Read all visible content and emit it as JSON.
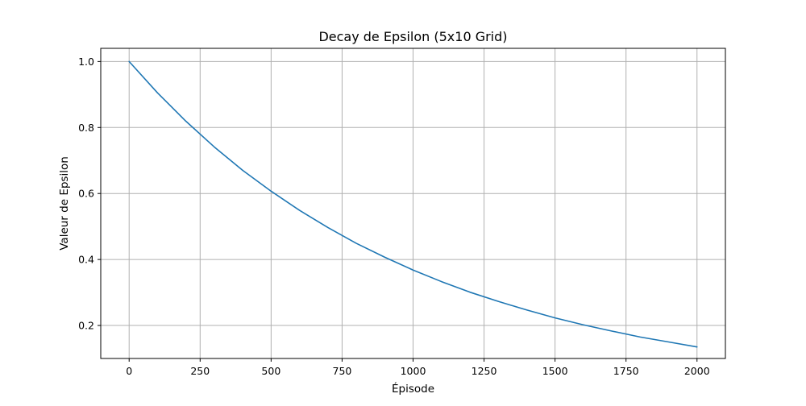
{
  "chart_data": {
    "type": "line",
    "title": "Decay de Epsilon (5x10 Grid)",
    "xlabel": "Épisode",
    "ylabel": "Valeur de Epsilon",
    "xlim": [
      -100,
      2100
    ],
    "ylim": [
      0.1,
      1.04
    ],
    "xticks": [
      0,
      250,
      500,
      750,
      1000,
      1250,
      1500,
      1750,
      2000
    ],
    "xtick_labels": [
      "0",
      "250",
      "500",
      "750",
      "1000",
      "1250",
      "1500",
      "1750",
      "2000"
    ],
    "yticks": [
      0.2,
      0.4,
      0.6,
      0.8,
      1.0
    ],
    "ytick_labels": [
      "0.2",
      "0.4",
      "0.6",
      "0.8",
      "1.0"
    ],
    "grid": true,
    "legend": "none",
    "series": [
      {
        "color": "#1f77b4",
        "x": [
          0,
          100,
          200,
          300,
          400,
          500,
          600,
          700,
          800,
          900,
          1000,
          1100,
          1200,
          1300,
          1400,
          1500,
          1600,
          1700,
          1800,
          1900,
          2000
        ],
        "y": [
          1.0,
          0.905,
          0.819,
          0.741,
          0.67,
          0.607,
          0.549,
          0.497,
          0.449,
          0.407,
          0.368,
          0.333,
          0.301,
          0.273,
          0.247,
          0.223,
          0.202,
          0.183,
          0.165,
          0.15,
          0.135
        ]
      }
    ]
  }
}
